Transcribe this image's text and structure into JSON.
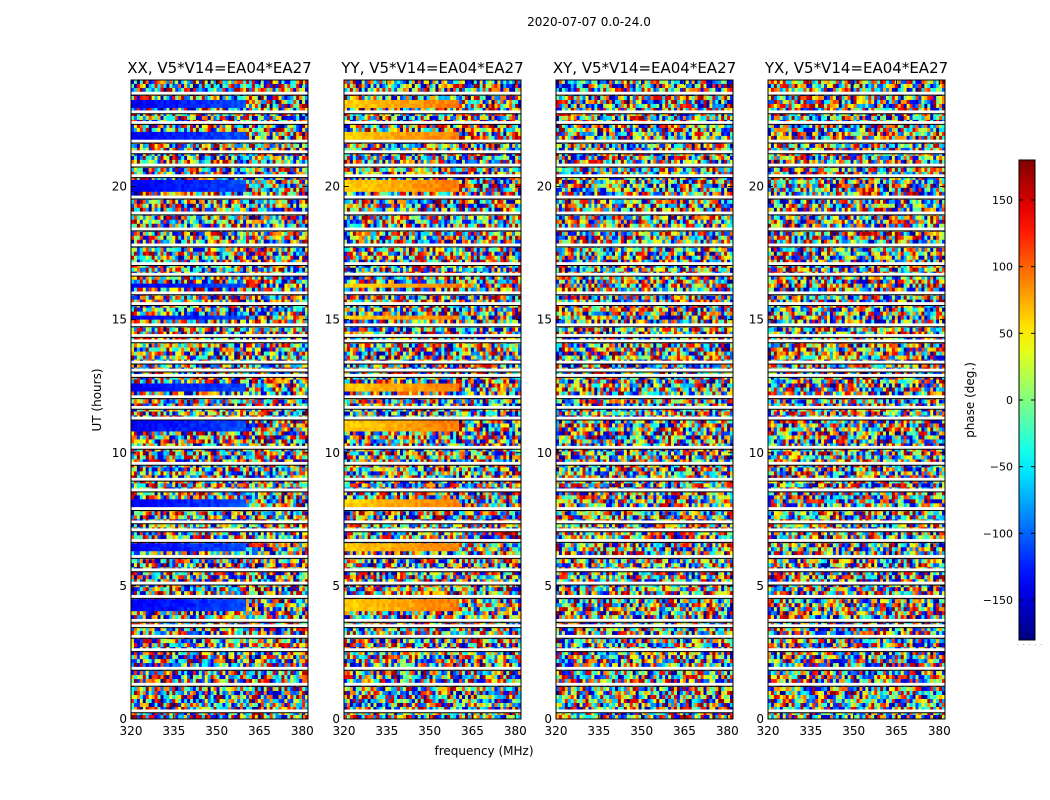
{
  "suptitle": "2020-07-07 0.0-24.0",
  "chart_data": {
    "type": "heatmap",
    "xlabel": "frequency (MHz)",
    "ylabel": "UT (hours)",
    "xlim": [
      320,
      382
    ],
    "ylim": [
      0,
      24
    ],
    "xticks": [
      "320",
      "335",
      "350",
      "365",
      "380"
    ],
    "yticks": [
      "0",
      "5",
      "10",
      "15",
      "20"
    ],
    "panels": [
      {
        "title": "XX, V5*V14=EA04*EA27",
        "base_phase": -140,
        "coherent_until_mhz": 360
      },
      {
        "title": "YY, V5*V14=EA04*EA27",
        "base_phase": 60,
        "coherent_until_mhz": 360
      },
      {
        "title": "XY, V5*V14=EA04*EA27",
        "base_phase": null,
        "coherent_until_mhz": null
      },
      {
        "title": "YX, V5*V14=EA04*EA27",
        "base_phase": null,
        "coherent_until_mhz": null
      }
    ],
    "coherent_bands_hours": [
      [
        4.0,
        4.5
      ],
      [
        6.3,
        6.6
      ],
      [
        8.0,
        8.2
      ],
      [
        10.8,
        11.2
      ],
      [
        12.3,
        12.6
      ],
      [
        15.0,
        15.2
      ],
      [
        16.2,
        16.4
      ],
      [
        19.8,
        20.2
      ],
      [
        21.8,
        22.0
      ],
      [
        23.0,
        23.3
      ]
    ],
    "gap_rows_hours": [
      0.3,
      1.3,
      1.9,
      2.6,
      3.1,
      3.5,
      3.7,
      4.6,
      5.1,
      5.6,
      6.1,
      6.7,
      7.1,
      7.4,
      7.9,
      8.6,
      9.0,
      9.6,
      10.2,
      11.3,
      11.7,
      12.1,
      12.9,
      13.1,
      13.4,
      14.2,
      14.4,
      14.8,
      15.6,
      16.0,
      16.7,
      17.1,
      17.8,
      18.4,
      19.0,
      19.6,
      20.4,
      20.8,
      21.3,
      21.7,
      22.4,
      22.8,
      23.5
    ],
    "colorbar": {
      "label": "phase (deg.)",
      "range": [
        -180,
        180
      ],
      "ticks": [
        "150",
        "100",
        "50",
        "0",
        "−50",
        "−100",
        "−150"
      ],
      "tick_values": [
        150,
        100,
        50,
        0,
        -50,
        -100,
        -150
      ],
      "colormap": "jet"
    }
  }
}
